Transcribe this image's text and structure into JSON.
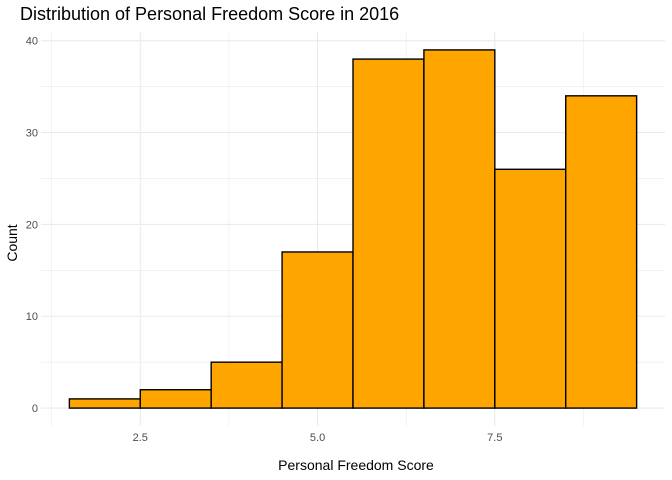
{
  "chart_data": {
    "type": "bar",
    "title": "Distribution of Personal Freedom Score in 2016",
    "xlabel": "Personal Freedom Score",
    "ylabel": "Count",
    "bins": [
      {
        "start": 1.5,
        "end": 2.5,
        "count": 1
      },
      {
        "start": 2.5,
        "end": 3.5,
        "count": 2
      },
      {
        "start": 3.5,
        "end": 4.5,
        "count": 5
      },
      {
        "start": 4.5,
        "end": 5.5,
        "count": 17
      },
      {
        "start": 5.5,
        "end": 6.5,
        "count": 38
      },
      {
        "start": 6.5,
        "end": 7.5,
        "count": 39
      },
      {
        "start": 7.5,
        "end": 8.5,
        "count": 26
      },
      {
        "start": 8.5,
        "end": 9.5,
        "count": 34
      }
    ],
    "xticks": [
      {
        "value": 2.5,
        "label": "2.5"
      },
      {
        "value": 5.0,
        "label": "5.0"
      },
      {
        "value": 7.5,
        "label": "7.5"
      }
    ],
    "yticks": [
      {
        "value": 0,
        "label": "0"
      },
      {
        "value": 10,
        "label": "10"
      },
      {
        "value": 20,
        "label": "20"
      },
      {
        "value": 30,
        "label": "30"
      },
      {
        "value": 40,
        "label": "40"
      }
    ],
    "xlim": [
      1.1,
      9.9
    ],
    "ylim": [
      -1.95,
      40.95
    ],
    "grid": true,
    "fill_color": "#FFA500",
    "border_color": "#000000",
    "grid_color": "#ebebeb"
  }
}
